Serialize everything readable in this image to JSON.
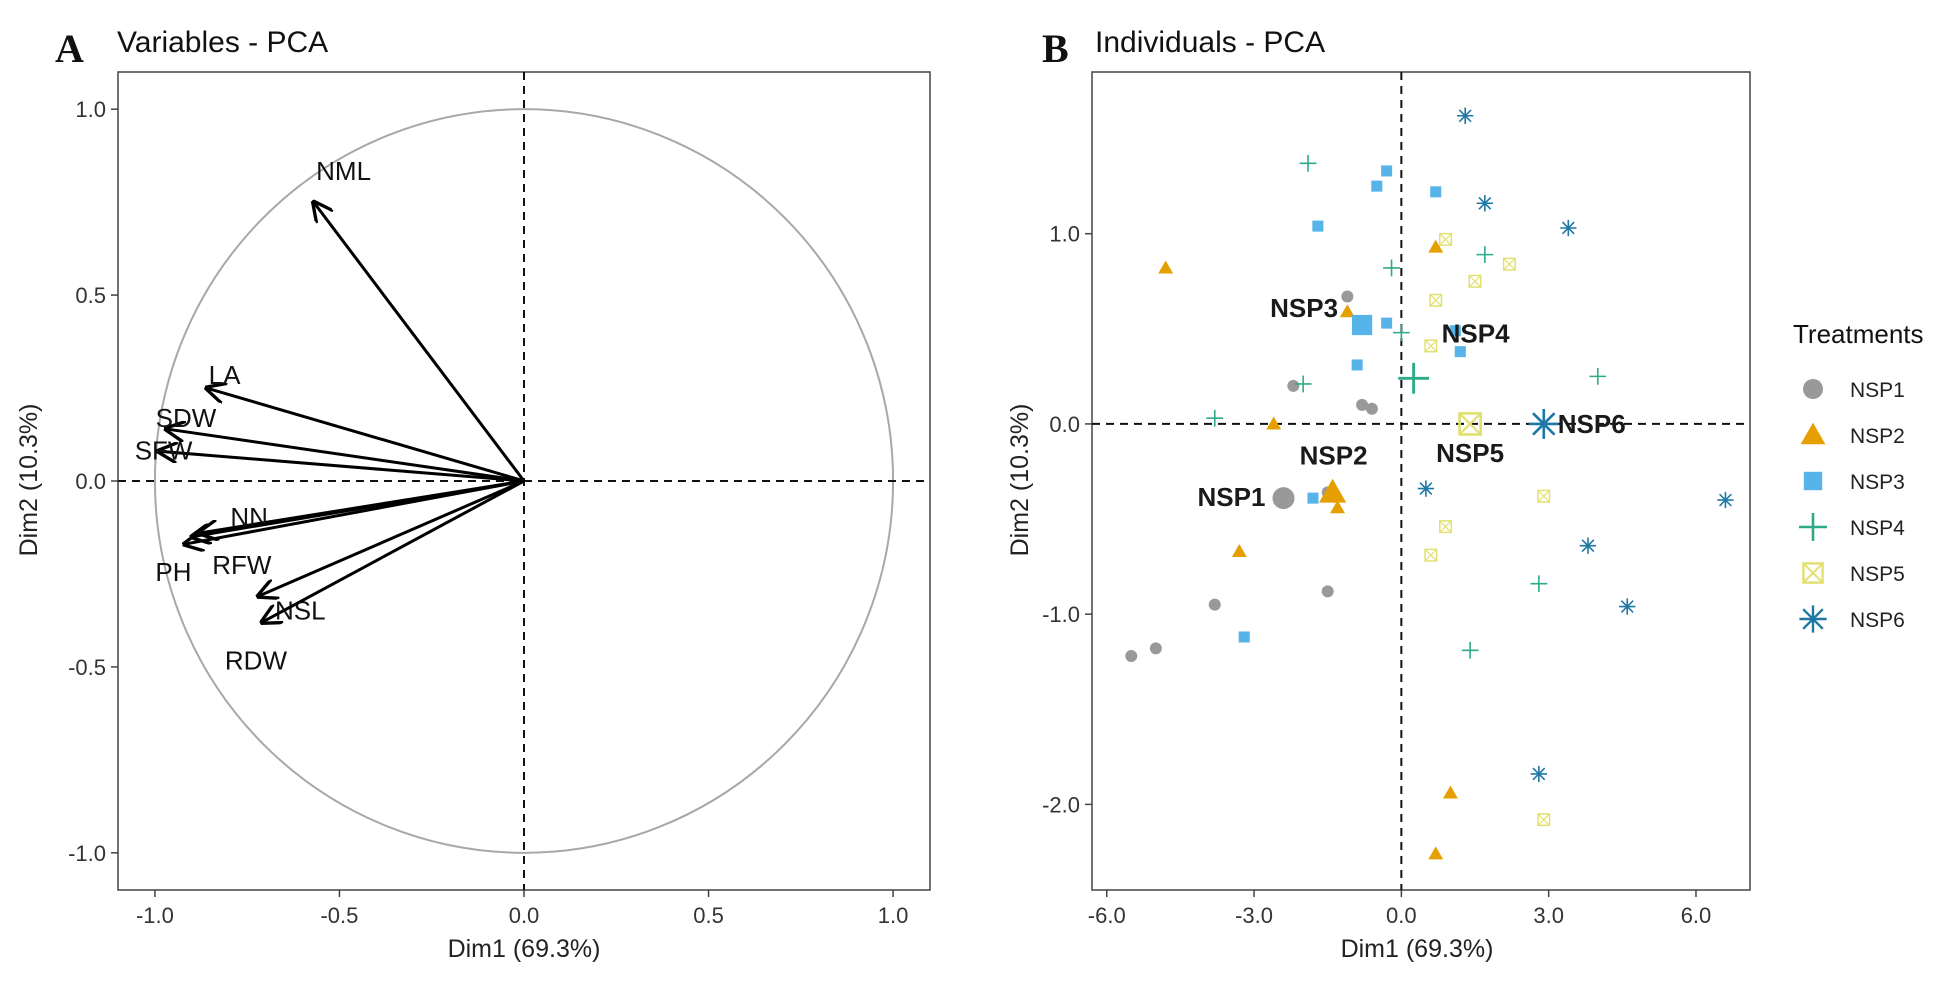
{
  "figure": {
    "palette": {
      "NSP1": "#999999",
      "NSP2": "#E69F00",
      "NSP3": "#56B4E9",
      "NSP4": "#2DAA8A",
      "NSP5": "#E2E06E",
      "NSP6": "#1F78A4"
    }
  },
  "chart_data": [
    {
      "type": "scatter",
      "letter": "A",
      "title": "Variables - PCA",
      "xlabel": "Dim1 (69.3%)",
      "ylabel": "Dim2 (10.3%)",
      "xlim": [
        -1.1,
        1.1
      ],
      "ylim": [
        -1.1,
        1.1
      ],
      "xticks": [
        -1.0,
        -0.5,
        0.0,
        0.5,
        1.0
      ],
      "xtick_labels": [
        "-1.0",
        "-0.5",
        "0.0",
        "0.5",
        "1.0"
      ],
      "yticks": [
        -1.0,
        -0.5,
        0.0,
        0.5,
        1.0
      ],
      "ytick_labels": [
        "-1.0",
        "-0.5",
        "0.0",
        "0.5",
        "1.0"
      ],
      "correlation_circle_radius": 1.0,
      "variables": [
        {
          "name": "NML",
          "x": -0.57,
          "y": 0.75
        },
        {
          "name": "LA",
          "x": -0.86,
          "y": 0.25
        },
        {
          "name": "SDW",
          "x": -0.97,
          "y": 0.14
        },
        {
          "name": "SFW",
          "x": -0.99,
          "y": 0.08
        },
        {
          "name": "NN",
          "x": -0.88,
          "y": -0.14
        },
        {
          "name": "PH",
          "x": -0.92,
          "y": -0.17
        },
        {
          "name": "RFW",
          "x": -0.9,
          "y": -0.15
        },
        {
          "name": "NSL",
          "x": -0.72,
          "y": -0.31
        },
        {
          "name": "RDW",
          "x": -0.71,
          "y": -0.38
        }
      ]
    },
    {
      "type": "scatter",
      "letter": "B",
      "title": "Individuals - PCA",
      "xlabel": "Dim1 (69.3%)",
      "ylabel": "Dim2 (10.3%)",
      "xlim": [
        -6.3,
        7.1
      ],
      "ylim": [
        -2.45,
        1.85
      ],
      "xticks": [
        -6.0,
        -3.0,
        0.0,
        3.0,
        6.0
      ],
      "xtick_labels": [
        "-6.0",
        "-3.0",
        "0.0",
        "3.0",
        "6.0"
      ],
      "yticks": [
        -2.0,
        -1.0,
        0.0,
        1.0
      ],
      "ytick_labels": [
        "-2.0",
        "-1.0",
        "0.0",
        "1.0"
      ],
      "legend": {
        "title": "Treatments",
        "position": "right",
        "entries": [
          "NSP1",
          "NSP2",
          "NSP3",
          "NSP4",
          "NSP5",
          "NSP6"
        ]
      },
      "groups": [
        {
          "name": "NSP1",
          "label": "NSP1",
          "shape": "circle",
          "centroid": [
            -2.4,
            -0.39
          ],
          "points": [
            [
              -5.5,
              -1.22
            ],
            [
              -5.0,
              -1.18
            ],
            [
              -3.8,
              -0.95
            ],
            [
              -2.2,
              0.2
            ],
            [
              -1.1,
              0.67
            ],
            [
              -0.8,
              0.1
            ],
            [
              -0.6,
              0.08
            ],
            [
              -1.5,
              -0.88
            ],
            [
              -1.5,
              -0.36
            ]
          ]
        },
        {
          "name": "NSP2",
          "label": "NSP2",
          "shape": "triangle",
          "centroid": [
            -1.4,
            -0.36
          ],
          "points": [
            [
              -4.8,
              0.82
            ],
            [
              -3.3,
              -0.67
            ],
            [
              -2.6,
              0.0
            ],
            [
              -1.1,
              0.59
            ],
            [
              -1.3,
              -0.44
            ],
            [
              0.7,
              0.93
            ],
            [
              1.0,
              -1.94
            ],
            [
              0.7,
              -2.26
            ]
          ]
        },
        {
          "name": "NSP3",
          "label": "NSP3",
          "shape": "square",
          "centroid": [
            -0.8,
            0.52
          ],
          "points": [
            [
              -1.7,
              1.04
            ],
            [
              -0.5,
              1.25
            ],
            [
              -0.3,
              1.33
            ],
            [
              0.7,
              1.22
            ],
            [
              1.1,
              0.49
            ],
            [
              -0.3,
              0.53
            ],
            [
              -0.9,
              0.31
            ],
            [
              -1.8,
              -0.39
            ],
            [
              -3.2,
              -1.12
            ],
            [
              1.2,
              0.38
            ]
          ]
        },
        {
          "name": "NSP4",
          "label": "NSP4",
          "shape": "plus",
          "centroid": [
            0.25,
            0.24
          ],
          "points": [
            [
              -1.9,
              1.37
            ],
            [
              -0.2,
              0.82
            ],
            [
              -2.0,
              0.21
            ],
            [
              -3.8,
              0.03
            ],
            [
              0.0,
              0.48
            ],
            [
              1.7,
              0.89
            ],
            [
              4.0,
              0.25
            ],
            [
              2.8,
              -0.84
            ],
            [
              1.4,
              -1.19
            ]
          ]
        },
        {
          "name": "NSP5",
          "label": "NSP5",
          "shape": "boxx",
          "centroid": [
            1.4,
            0.0
          ],
          "points": [
            [
              0.9,
              0.97
            ],
            [
              1.5,
              0.75
            ],
            [
              2.2,
              0.84
            ],
            [
              0.7,
              0.65
            ],
            [
              0.6,
              0.41
            ],
            [
              0.9,
              -0.54
            ],
            [
              0.6,
              -0.69
            ],
            [
              2.9,
              -0.38
            ],
            [
              2.9,
              -2.08
            ]
          ]
        },
        {
          "name": "NSP6",
          "label": "NSP6",
          "shape": "asterisk",
          "centroid": [
            2.9,
            0.0
          ],
          "points": [
            [
              1.3,
              1.62
            ],
            [
              1.7,
              1.16
            ],
            [
              3.4,
              1.03
            ],
            [
              0.5,
              -0.34
            ],
            [
              3.8,
              -0.64
            ],
            [
              4.6,
              -0.96
            ],
            [
              6.6,
              -0.4
            ],
            [
              2.8,
              -1.84
            ]
          ]
        }
      ]
    }
  ]
}
